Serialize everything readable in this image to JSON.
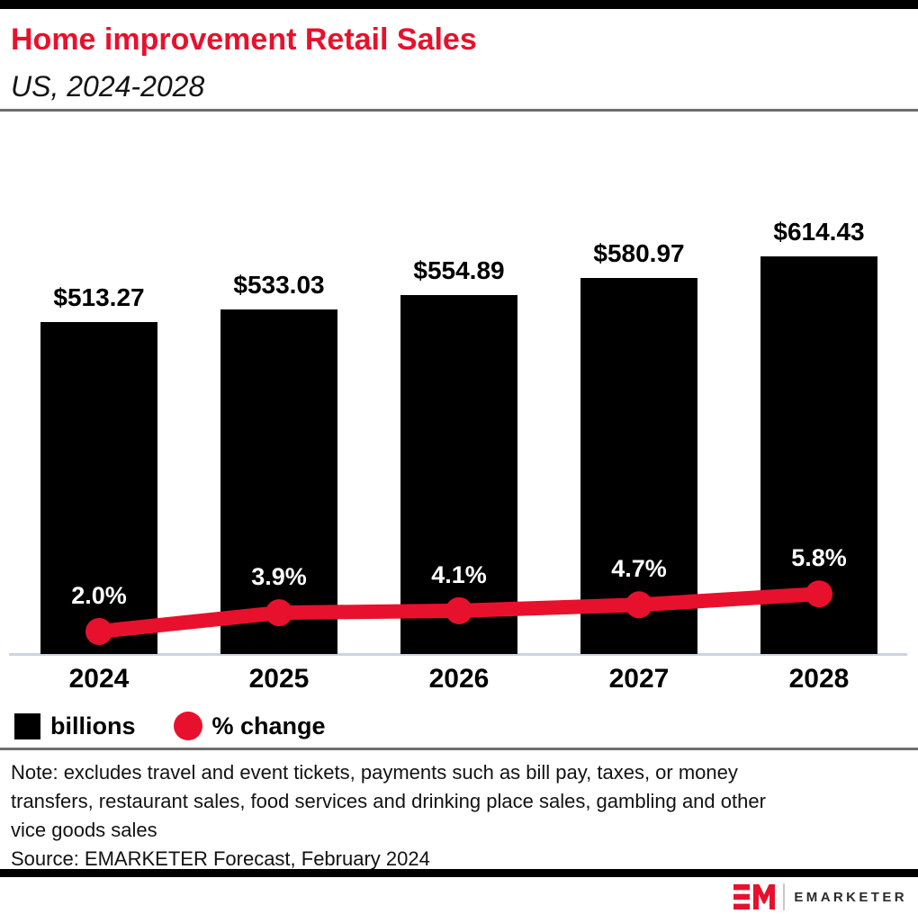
{
  "header": {
    "title": "Home improvement Retail Sales",
    "subtitle": "US, 2024-2028",
    "accent_color": "#e8112d"
  },
  "chart_data": {
    "type": "bar",
    "title": "Home improvement Retail Sales",
    "subtitle": "US, 2024-2028",
    "categories": [
      "2024",
      "2025",
      "2026",
      "2027",
      "2028"
    ],
    "series": [
      {
        "name": "billions",
        "type": "bar",
        "color": "#000000",
        "values": [
          513.27,
          533.03,
          554.89,
          580.97,
          614.43
        ],
        "labels": [
          "$513.27",
          "$533.03",
          "$554.89",
          "$580.97",
          "$614.43"
        ]
      },
      {
        "name": "% change",
        "type": "line",
        "color": "#e8112d",
        "values": [
          2.0,
          3.9,
          4.1,
          4.7,
          5.8
        ],
        "labels": [
          "2.0%",
          "3.9%",
          "4.1%",
          "4.7%",
          "5.8%"
        ]
      }
    ],
    "xlabel": "",
    "ylabel": "billions",
    "ylim": [
      0,
      650
    ],
    "grid": false,
    "legend_position": "bottom-left"
  },
  "legend": {
    "items": [
      {
        "label": "billions",
        "swatch": "square",
        "color": "#000000"
      },
      {
        "label": "% change",
        "swatch": "circle",
        "color": "#e8112d"
      }
    ]
  },
  "note": {
    "lines": [
      "Note: excludes travel and event tickets, payments such as bill pay, taxes, or money",
      "transfers, restaurant sales, food services and drinking place sales, gambling and other",
      "vice goods sales"
    ]
  },
  "source": "Source: EMARKETER Forecast, February 2024",
  "logo": {
    "text": "EMARKETER"
  }
}
